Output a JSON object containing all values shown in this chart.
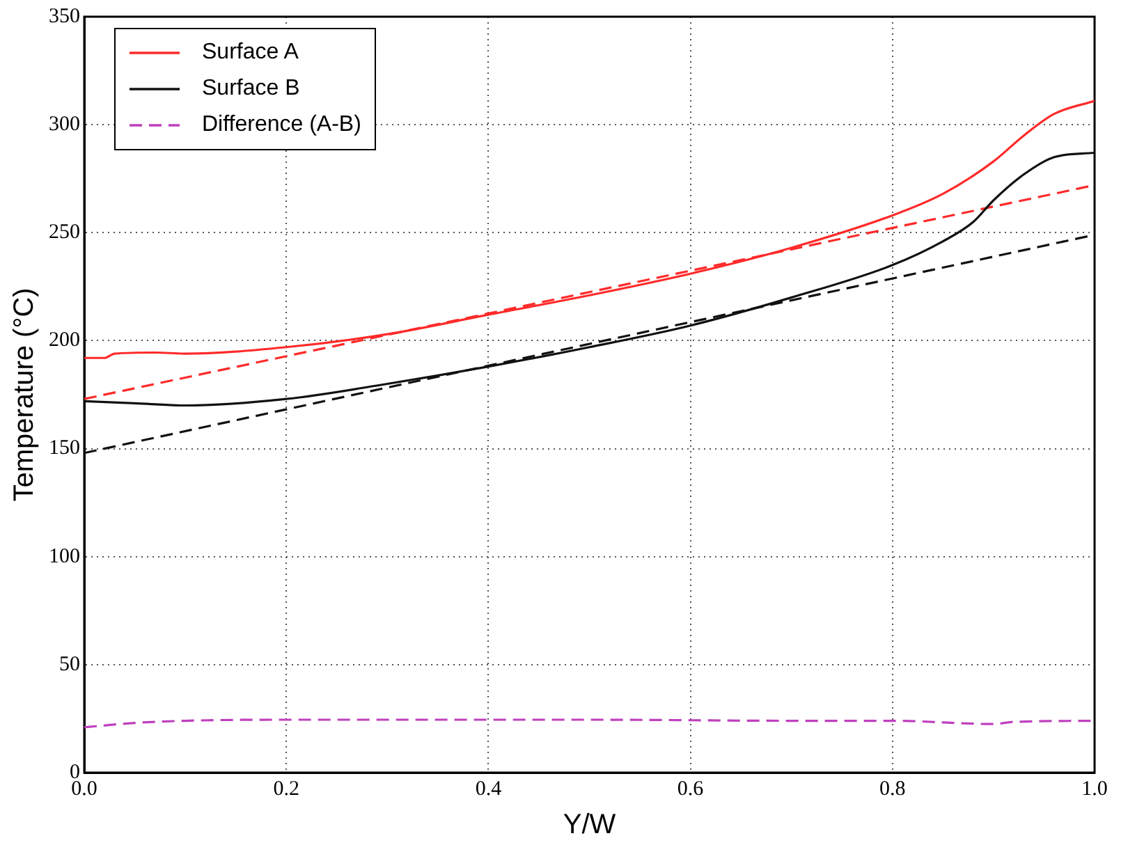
{
  "chart_data": {
    "type": "line",
    "xlabel": "Y/W",
    "ylabel": "Temperature (°C)",
    "xlim": [
      0,
      1
    ],
    "xticks": [
      {
        "value": 0,
        "label": "0.0"
      },
      0.2,
      0.4,
      0.6,
      0.8,
      {
        "value": 1,
        "label": "1.0"
      }
    ],
    "ylim": [
      0,
      350
    ],
    "yticks": [
      0,
      50,
      100,
      150,
      200,
      250,
      300,
      350
    ],
    "grid": true,
    "legend": "top left",
    "marker": "none",
    "series": [
      {
        "name": "Surface A",
        "color": "#ff2a2a",
        "line_style": "solid",
        "x": [
          0,
          0.02,
          0.03,
          0.07,
          0.1,
          0.2,
          0.3,
          0.4,
          0.5,
          0.6,
          0.7,
          0.8,
          0.85,
          0.9,
          0.93,
          0.96,
          1.0
        ],
        "values": [
          192,
          192,
          194,
          194.5,
          194,
          197,
          203,
          212,
          221,
          231,
          243,
          258,
          268,
          283,
          295,
          305,
          311
        ]
      },
      {
        "name": "Surface B",
        "color": "#111111",
        "line_style": "solid",
        "x": [
          0,
          0.05,
          0.1,
          0.2,
          0.3,
          0.4,
          0.5,
          0.6,
          0.7,
          0.8,
          0.85,
          0.88,
          0.9,
          0.93,
          0.96,
          1.0
        ],
        "values": [
          172,
          171,
          170,
          173,
          180,
          188,
          197,
          207,
          220,
          235,
          246,
          255,
          265,
          277,
          285,
          287
        ]
      },
      {
        "name": "Difference (A-B)",
        "color": "#bf40bf",
        "line_style": "dashed",
        "x": [
          0,
          0.05,
          0.1,
          0.2,
          0.3,
          0.5,
          0.7,
          0.8,
          0.9,
          0.92,
          1.0
        ],
        "values": [
          21,
          23,
          24,
          24.5,
          24.5,
          24.5,
          24,
          24,
          22.5,
          23.5,
          24
        ]
      },
      {
        "color": "#ff2a2a",
        "line_style": "dashed",
        "x": [
          0,
          1
        ],
        "values": [
          173,
          272
        ]
      },
      {
        "color": "#111111",
        "line_style": "dashed",
        "x": [
          0,
          1
        ],
        "values": [
          148,
          249
        ]
      }
    ]
  }
}
